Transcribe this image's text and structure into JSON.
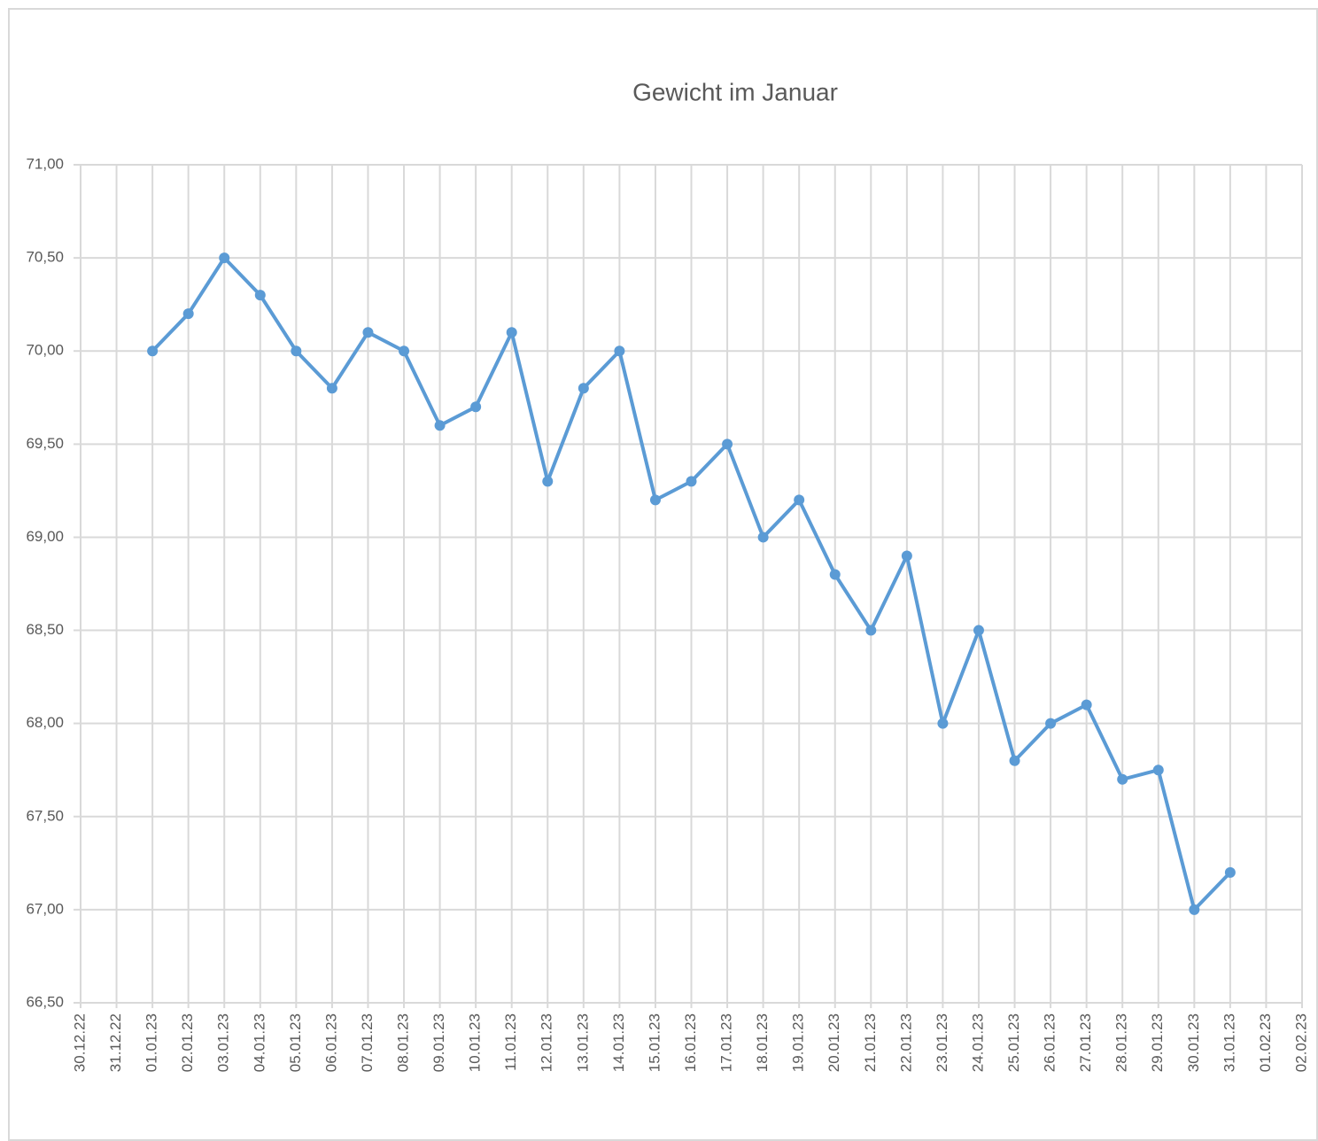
{
  "chart_data": {
    "type": "line",
    "title": "Gewicht im Januar",
    "categories": [
      "30.12.22",
      "31.12.22",
      "01.01.23",
      "02.01.23",
      "03.01.23",
      "04.01.23",
      "05.01.23",
      "06.01.23",
      "07.01.23",
      "08.01.23",
      "09.01.23",
      "10.01.23",
      "11.01.23",
      "12.01.23",
      "13.01.23",
      "14.01.23",
      "15.01.23",
      "16.01.23",
      "17.01.23",
      "18.01.23",
      "19.01.23",
      "20.01.23",
      "21.01.23",
      "22.01.23",
      "23.01.23",
      "24.01.23",
      "25.01.23",
      "26.01.23",
      "27.01.23",
      "28.01.23",
      "29.01.23",
      "30.01.23",
      "31.01.23",
      "01.02.23",
      "02.02.23"
    ],
    "series": [
      {
        "name": "Gewicht",
        "color": "#5b9bd5",
        "values": [
          null,
          null,
          70.0,
          70.2,
          70.5,
          70.3,
          70.0,
          69.8,
          70.1,
          70.0,
          69.6,
          69.7,
          70.1,
          69.3,
          69.8,
          70.0,
          69.2,
          69.3,
          69.5,
          69.0,
          69.2,
          68.8,
          68.5,
          68.9,
          68.0,
          68.5,
          67.8,
          68.0,
          68.1,
          67.7,
          67.75,
          67.0,
          67.2,
          null,
          null
        ]
      }
    ],
    "ylim": [
      66.5,
      71
    ],
    "yticks": [
      {
        "value": 66.5,
        "label": "66,50"
      },
      {
        "value": 67,
        "label": "67,00"
      },
      {
        "value": 67.5,
        "label": "67,50"
      },
      {
        "value": 68,
        "label": "68,00"
      },
      {
        "value": 68.5,
        "label": "68,50"
      },
      {
        "value": 69,
        "label": "69,00"
      },
      {
        "value": 69.5,
        "label": "69,50"
      },
      {
        "value": 70,
        "label": "70,00"
      },
      {
        "value": 70.5,
        "label": "70,50"
      },
      {
        "value": 71,
        "label": "71,00"
      }
    ],
    "grid": true
  }
}
